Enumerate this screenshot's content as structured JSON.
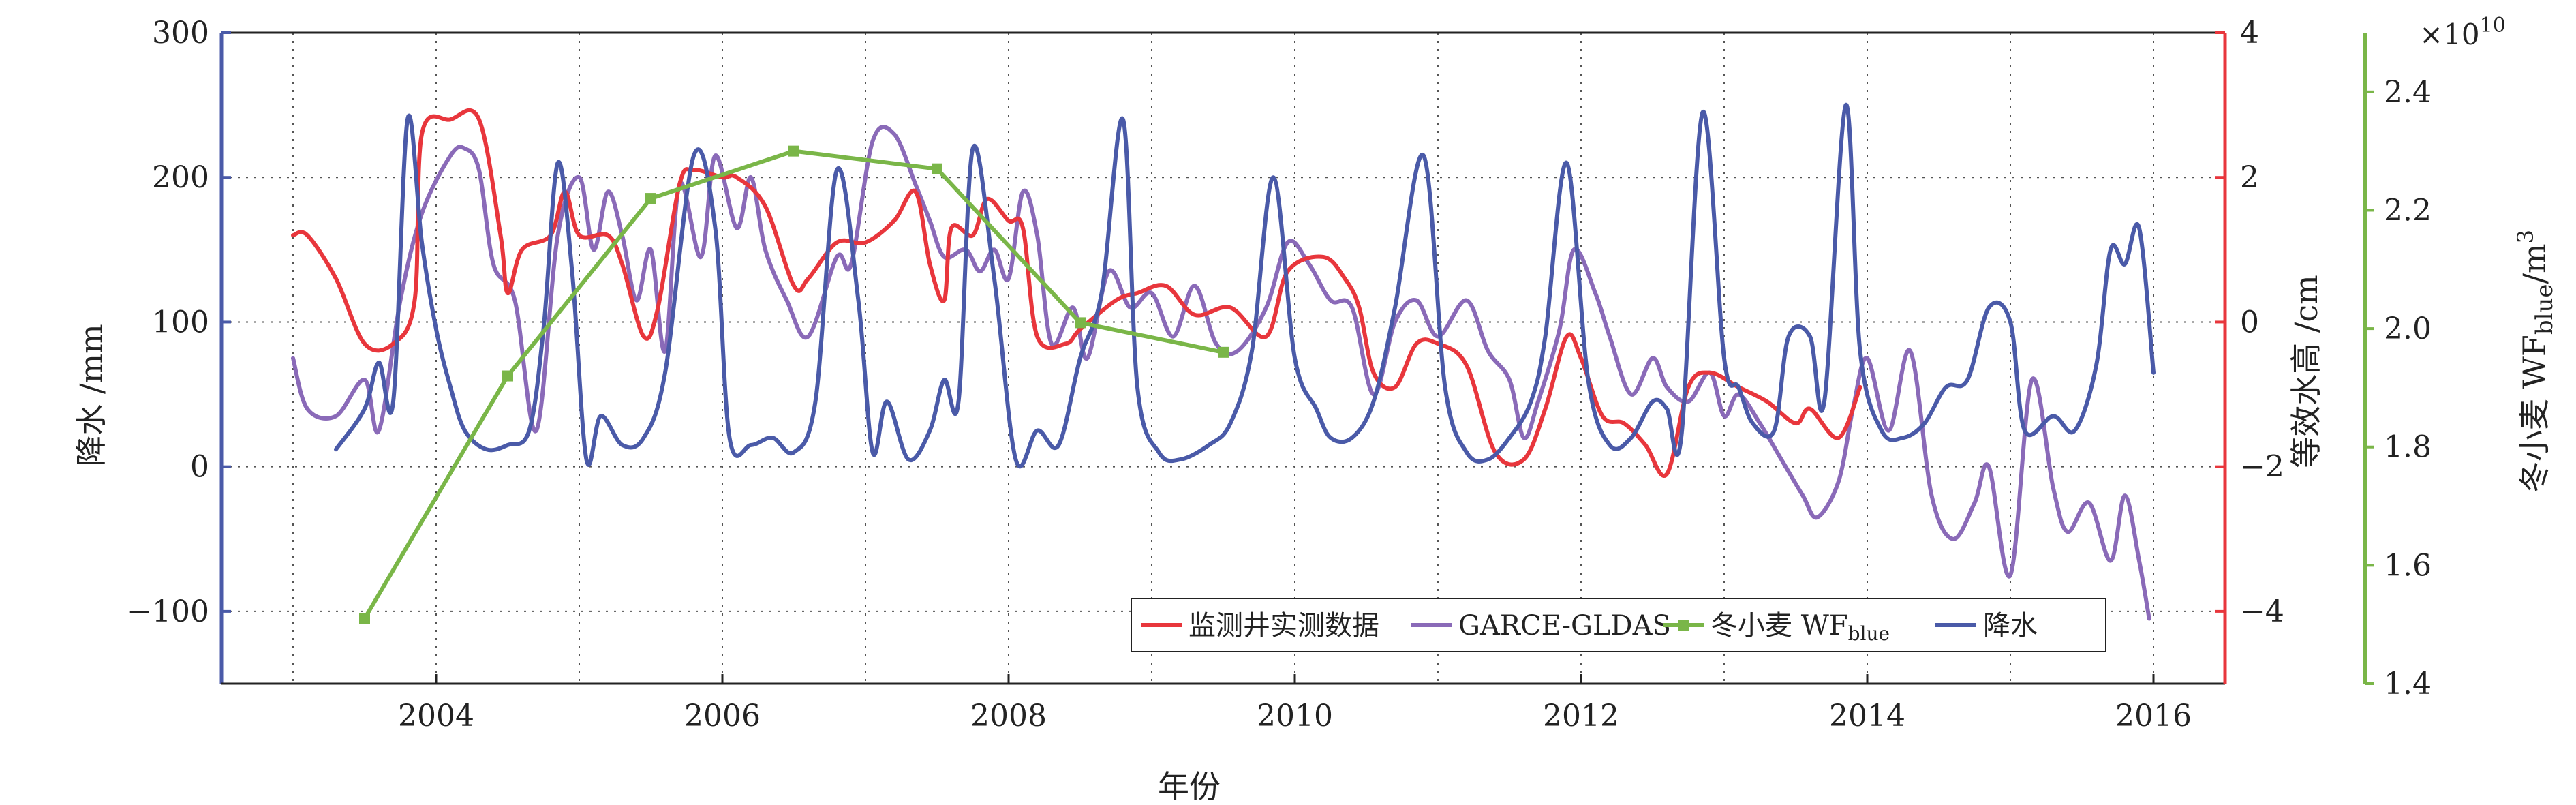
{
  "chart_data": {
    "type": "line",
    "xlabel": "年份",
    "ylabel_left": "降水 /mm",
    "ylabel_right1": "等效水高 /cm",
    "ylabel_right2": "冬小麦 WF",
    "ylabel_right2_sub": "blue",
    "ylabel_right2_unit": "/m",
    "ylabel_right2_sup": "3",
    "right2_multiplier_prefix": "×10",
    "right2_multiplier_exp": "10",
    "xlim": [
      2002.5,
      2016.5
    ],
    "x_ticks": [
      2004,
      2006,
      2008,
      2010,
      2012,
      2014,
      2016
    ],
    "x_tick_labels": [
      "2004",
      "2006",
      "2008",
      "2010",
      "2012",
      "2014",
      "2016"
    ],
    "ylim_left": [
      -150,
      300
    ],
    "y_left_ticks": [
      -100,
      0,
      100,
      200,
      300
    ],
    "y_left_tick_labels": [
      "−100",
      "0",
      "100",
      "200",
      "300"
    ],
    "ylim_right1": [
      -5,
      4
    ],
    "y_right1_ticks": [
      -4,
      -2,
      0,
      2,
      4
    ],
    "y_right1_tick_labels": [
      "−4",
      "−2",
      "0",
      "2",
      "4"
    ],
    "ylim_right2": [
      1.4,
      2.5
    ],
    "y_right2_ticks": [
      1.4,
      1.6,
      1.8,
      2.0,
      2.2,
      2.4
    ],
    "y_right2_tick_labels": [
      "1.4",
      "1.6",
      "1.8",
      "2.0",
      "2.2",
      "2.4"
    ],
    "grid": true,
    "legend_position": "bottom-right",
    "colors": {
      "left_axis": "#4a5aa8",
      "right1_axis": "#e8363c",
      "right2_axis": "#7ab648"
    },
    "series": [
      {
        "name": "监测井实测数据",
        "axis": "right1",
        "color": "#e8363c",
        "marker": "none",
        "points": [
          [
            2003.0,
            1.2
          ],
          [
            2003.1,
            1.2
          ],
          [
            2003.3,
            0.6
          ],
          [
            2003.5,
            -0.3
          ],
          [
            2003.7,
            -0.3
          ],
          [
            2003.85,
            0.3
          ],
          [
            2003.9,
            2.6
          ],
          [
            2004.1,
            2.8
          ],
          [
            2004.3,
            2.8
          ],
          [
            2004.45,
            1.2
          ],
          [
            2004.5,
            0.4
          ],
          [
            2004.6,
            1.0
          ],
          [
            2004.8,
            1.2
          ],
          [
            2004.9,
            1.8
          ],
          [
            2005.0,
            1.2
          ],
          [
            2005.2,
            1.2
          ],
          [
            2005.3,
            0.8
          ],
          [
            2005.45,
            -0.2
          ],
          [
            2005.55,
            0.2
          ],
          [
            2005.7,
            1.9
          ],
          [
            2005.8,
            2.1
          ],
          [
            2006.0,
            2.0
          ],
          [
            2006.1,
            2.0
          ],
          [
            2006.3,
            1.6
          ],
          [
            2006.5,
            0.5
          ],
          [
            2006.6,
            0.6
          ],
          [
            2006.8,
            1.1
          ],
          [
            2007.0,
            1.1
          ],
          [
            2007.2,
            1.4
          ],
          [
            2007.35,
            1.8
          ],
          [
            2007.45,
            0.8
          ],
          [
            2007.55,
            0.3
          ],
          [
            2007.6,
            1.3
          ],
          [
            2007.75,
            1.2
          ],
          [
            2007.85,
            1.7
          ],
          [
            2008.0,
            1.4
          ],
          [
            2008.1,
            1.3
          ],
          [
            2008.2,
            -0.2
          ],
          [
            2008.4,
            -0.3
          ],
          [
            2008.5,
            -0.1
          ],
          [
            2008.75,
            0.3
          ],
          [
            2008.9,
            0.4
          ],
          [
            2009.1,
            0.5
          ],
          [
            2009.3,
            0.1
          ],
          [
            2009.55,
            0.2
          ],
          [
            2009.8,
            -0.2
          ],
          [
            2009.95,
            0.7
          ],
          [
            2010.2,
            0.9
          ],
          [
            2010.35,
            0.6
          ],
          [
            2010.45,
            0.2
          ],
          [
            2010.55,
            -0.7
          ],
          [
            2010.7,
            -0.9
          ],
          [
            2010.85,
            -0.3
          ],
          [
            2011.0,
            -0.3
          ],
          [
            2011.2,
            -0.6
          ],
          [
            2011.4,
            -1.8
          ],
          [
            2011.6,
            -1.9
          ],
          [
            2011.75,
            -1.2
          ],
          [
            2011.9,
            -0.2
          ],
          [
            2012.0,
            -0.5
          ],
          [
            2012.15,
            -1.3
          ],
          [
            2012.3,
            -1.4
          ],
          [
            2012.45,
            -1.7
          ],
          [
            2012.6,
            -2.1
          ],
          [
            2012.75,
            -0.9
          ],
          [
            2012.9,
            -0.7
          ],
          [
            2013.1,
            -0.9
          ],
          [
            2013.3,
            -1.1
          ],
          [
            2013.5,
            -1.4
          ],
          [
            2013.6,
            -1.2
          ],
          [
            2013.8,
            -1.6
          ],
          [
            2013.95,
            -0.9
          ]
        ]
      },
      {
        "name": "GARCE-GLDAS",
        "axis": "right1",
        "color": "#8a6ab8",
        "marker": "none",
        "points": [
          [
            2003.0,
            -0.5
          ],
          [
            2003.1,
            -1.2
          ],
          [
            2003.3,
            -1.3
          ],
          [
            2003.5,
            -0.8
          ],
          [
            2003.6,
            -1.5
          ],
          [
            2003.75,
            0.3
          ],
          [
            2003.9,
            1.5
          ],
          [
            2004.1,
            2.3
          ],
          [
            2004.2,
            2.4
          ],
          [
            2004.3,
            2.1
          ],
          [
            2004.4,
            0.8
          ],
          [
            2004.55,
            0.3
          ],
          [
            2004.7,
            -1.5
          ],
          [
            2004.85,
            1.2
          ],
          [
            2005.0,
            2.0
          ],
          [
            2005.1,
            1.0
          ],
          [
            2005.2,
            1.8
          ],
          [
            2005.3,
            1.2
          ],
          [
            2005.4,
            0.3
          ],
          [
            2005.5,
            1.0
          ],
          [
            2005.6,
            -0.4
          ],
          [
            2005.7,
            1.9
          ],
          [
            2005.85,
            0.9
          ],
          [
            2005.95,
            2.3
          ],
          [
            2006.1,
            1.3
          ],
          [
            2006.2,
            2.0
          ],
          [
            2006.3,
            1.0
          ],
          [
            2006.45,
            0.3
          ],
          [
            2006.6,
            -0.2
          ],
          [
            2006.8,
            0.9
          ],
          [
            2006.9,
            0.8
          ],
          [
            2007.05,
            2.5
          ],
          [
            2007.2,
            2.6
          ],
          [
            2007.35,
            1.9
          ],
          [
            2007.45,
            1.4
          ],
          [
            2007.55,
            0.9
          ],
          [
            2007.7,
            1.0
          ],
          [
            2007.8,
            0.7
          ],
          [
            2007.9,
            1.0
          ],
          [
            2008.0,
            0.6
          ],
          [
            2008.1,
            1.8
          ],
          [
            2008.2,
            1.2
          ],
          [
            2008.3,
            -0.3
          ],
          [
            2008.45,
            0.2
          ],
          [
            2008.55,
            -0.5
          ],
          [
            2008.7,
            0.7
          ],
          [
            2008.85,
            0.2
          ],
          [
            2009.0,
            0.4
          ],
          [
            2009.15,
            -0.2
          ],
          [
            2009.3,
            0.5
          ],
          [
            2009.45,
            -0.3
          ],
          [
            2009.6,
            -0.4
          ],
          [
            2009.8,
            0.2
          ],
          [
            2009.95,
            1.1
          ],
          [
            2010.1,
            0.8
          ],
          [
            2010.25,
            0.3
          ],
          [
            2010.4,
            0.2
          ],
          [
            2010.55,
            -1.0
          ],
          [
            2010.7,
            0.0
          ],
          [
            2010.85,
            0.3
          ],
          [
            2011.0,
            -0.2
          ],
          [
            2011.2,
            0.3
          ],
          [
            2011.35,
            -0.4
          ],
          [
            2011.5,
            -0.8
          ],
          [
            2011.6,
            -1.6
          ],
          [
            2011.7,
            -1.1
          ],
          [
            2011.85,
            -0.1
          ],
          [
            2011.95,
            1.0
          ],
          [
            2012.1,
            0.4
          ],
          [
            2012.2,
            -0.2
          ],
          [
            2012.35,
            -1.0
          ],
          [
            2012.5,
            -0.5
          ],
          [
            2012.6,
            -0.9
          ],
          [
            2012.75,
            -1.1
          ],
          [
            2012.9,
            -0.7
          ],
          [
            2013.0,
            -1.3
          ],
          [
            2013.1,
            -1.0
          ],
          [
            2013.25,
            -1.4
          ],
          [
            2013.4,
            -1.9
          ],
          [
            2013.55,
            -2.4
          ],
          [
            2013.65,
            -2.7
          ],
          [
            2013.8,
            -2.2
          ],
          [
            2013.9,
            -1.2
          ],
          [
            2014.0,
            -0.5
          ],
          [
            2014.15,
            -1.5
          ],
          [
            2014.3,
            -0.4
          ],
          [
            2014.45,
            -2.4
          ],
          [
            2014.6,
            -3.0
          ],
          [
            2014.75,
            -2.5
          ],
          [
            2014.85,
            -2.0
          ],
          [
            2015.0,
            -3.5
          ],
          [
            2015.15,
            -0.8
          ],
          [
            2015.3,
            -2.3
          ],
          [
            2015.4,
            -2.9
          ],
          [
            2015.55,
            -2.5
          ],
          [
            2015.7,
            -3.3
          ],
          [
            2015.8,
            -2.4
          ],
          [
            2015.9,
            -3.3
          ],
          [
            2015.97,
            -4.1
          ]
        ]
      },
      {
        "name": "冬小麦 WF",
        "name_sub": "blue",
        "axis": "right2",
        "color": "#7ab648",
        "marker": "square",
        "points": [
          [
            2003.5,
            1.51
          ],
          [
            2004.5,
            1.92
          ],
          [
            2005.5,
            2.22
          ],
          [
            2006.5,
            2.3
          ],
          [
            2007.5,
            2.27
          ],
          [
            2008.5,
            2.01
          ],
          [
            2009.5,
            1.96
          ]
        ]
      },
      {
        "name": "降水",
        "axis": "left",
        "color": "#4a5aa8",
        "marker": "none",
        "points": [
          [
            2003.3,
            12
          ],
          [
            2003.5,
            40
          ],
          [
            2003.6,
            72
          ],
          [
            2003.7,
            45
          ],
          [
            2003.8,
            240
          ],
          [
            2003.9,
            155
          ],
          [
            2004.0,
            95
          ],
          [
            2004.1,
            55
          ],
          [
            2004.2,
            25
          ],
          [
            2004.35,
            12
          ],
          [
            2004.5,
            15
          ],
          [
            2004.65,
            25
          ],
          [
            2004.75,
            95
          ],
          [
            2004.85,
            210
          ],
          [
            2004.95,
            135
          ],
          [
            2005.05,
            5
          ],
          [
            2005.15,
            35
          ],
          [
            2005.3,
            15
          ],
          [
            2005.45,
            20
          ],
          [
            2005.6,
            65
          ],
          [
            2005.8,
            215
          ],
          [
            2005.95,
            165
          ],
          [
            2006.05,
            20
          ],
          [
            2006.2,
            15
          ],
          [
            2006.35,
            20
          ],
          [
            2006.5,
            10
          ],
          [
            2006.65,
            45
          ],
          [
            2006.8,
            205
          ],
          [
            2006.95,
            115
          ],
          [
            2007.05,
            10
          ],
          [
            2007.15,
            45
          ],
          [
            2007.3,
            5
          ],
          [
            2007.45,
            25
          ],
          [
            2007.55,
            60
          ],
          [
            2007.65,
            45
          ],
          [
            2007.75,
            220
          ],
          [
            2007.9,
            130
          ],
          [
            2008.05,
            5
          ],
          [
            2008.2,
            25
          ],
          [
            2008.35,
            15
          ],
          [
            2008.5,
            75
          ],
          [
            2008.65,
            120
          ],
          [
            2008.8,
            240
          ],
          [
            2008.9,
            55
          ],
          [
            2009.05,
            10
          ],
          [
            2009.2,
            5
          ],
          [
            2009.4,
            15
          ],
          [
            2009.55,
            30
          ],
          [
            2009.7,
            80
          ],
          [
            2009.85,
            200
          ],
          [
            2010.0,
            75
          ],
          [
            2010.15,
            40
          ],
          [
            2010.25,
            20
          ],
          [
            2010.4,
            20
          ],
          [
            2010.55,
            45
          ],
          [
            2010.7,
            110
          ],
          [
            2010.9,
            215
          ],
          [
            2011.05,
            55
          ],
          [
            2011.2,
            10
          ],
          [
            2011.35,
            5
          ],
          [
            2011.5,
            20
          ],
          [
            2011.65,
            45
          ],
          [
            2011.75,
            90
          ],
          [
            2011.9,
            210
          ],
          [
            2012.05,
            60
          ],
          [
            2012.2,
            15
          ],
          [
            2012.35,
            20
          ],
          [
            2012.5,
            45
          ],
          [
            2012.6,
            40
          ],
          [
            2012.7,
            20
          ],
          [
            2012.85,
            245
          ],
          [
            2013.0,
            75
          ],
          [
            2013.1,
            55
          ],
          [
            2013.2,
            30
          ],
          [
            2013.35,
            25
          ],
          [
            2013.45,
            90
          ],
          [
            2013.6,
            90
          ],
          [
            2013.7,
            45
          ],
          [
            2013.85,
            250
          ],
          [
            2013.95,
            80
          ],
          [
            2014.1,
            25
          ],
          [
            2014.25,
            20
          ],
          [
            2014.4,
            30
          ],
          [
            2014.55,
            55
          ],
          [
            2014.7,
            60
          ],
          [
            2014.85,
            110
          ],
          [
            2015.0,
            100
          ],
          [
            2015.1,
            25
          ],
          [
            2015.3,
            35
          ],
          [
            2015.45,
            25
          ],
          [
            2015.6,
            70
          ],
          [
            2015.7,
            150
          ],
          [
            2015.8,
            140
          ],
          [
            2015.9,
            165
          ],
          [
            2016.0,
            65
          ]
        ]
      }
    ],
    "legend": [
      {
        "label": "监测井实测数据",
        "color": "#e8363c",
        "marker": "none"
      },
      {
        "label": "GARCE-GLDAS",
        "color": "#8a6ab8",
        "marker": "none"
      },
      {
        "label": "冬小麦 WF",
        "sub": "blue",
        "color": "#7ab648",
        "marker": "square"
      },
      {
        "label": "降水",
        "color": "#4a5aa8",
        "marker": "none"
      }
    ]
  }
}
